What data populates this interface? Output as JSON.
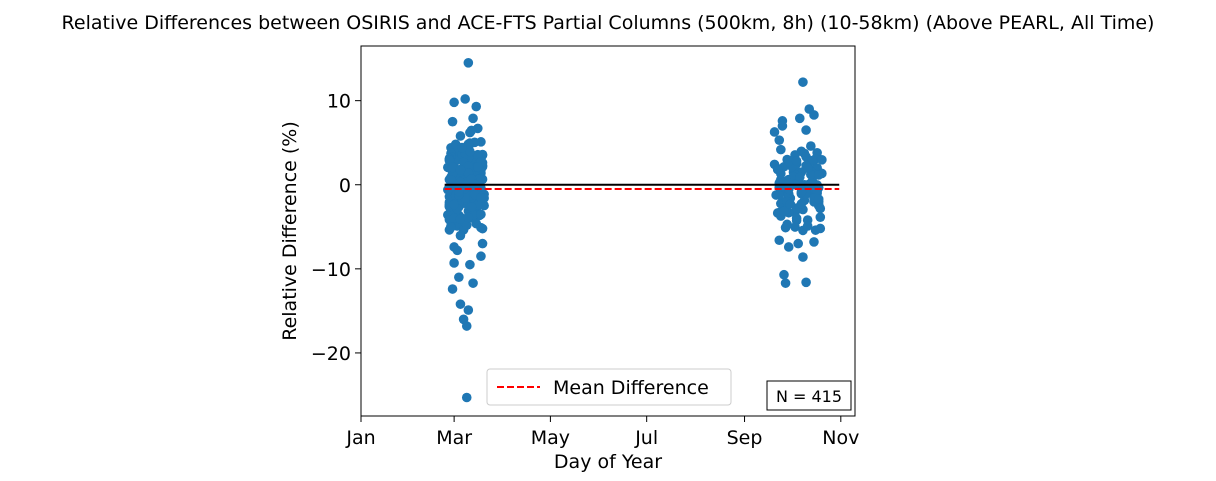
{
  "chart_data": {
    "type": "scatter",
    "title": "Relative Differences between OSIRIS and ACE-FTS Partial Columns (500km, 8h) (10-58km) (Above PEARL, All Time)",
    "xlabel": "Day of Year",
    "ylabel": "Relative Difference (%)",
    "xlim": [
      "Jan",
      "Nov"
    ],
    "ylim": [
      -27.5,
      16.5
    ],
    "x_tick_labels": [
      "Jan",
      "Mar",
      "May",
      "Jul",
      "Sep",
      "Nov"
    ],
    "x_tick_dates": [
      "01-01",
      "03-01",
      "05-01",
      "07-01",
      "09-01",
      "11-01"
    ],
    "y_ticks": [
      10,
      0,
      -10,
      -20
    ],
    "y_tick_labels": [
      "10",
      "0",
      "−10",
      "−20"
    ],
    "zero_line": {
      "y": 0,
      "x_start": "02-23",
      "x_end": "10-31",
      "color": "#000000"
    },
    "mean_line": {
      "name": "Mean Difference",
      "y": -0.5,
      "x_start": "02-23",
      "x_end": "10-31",
      "color": "#ff0000"
    },
    "legend": {
      "label": "Mean Difference",
      "position": "lower center"
    },
    "annotation": "N = 415",
    "grid": false,
    "marker_color": "#1f77b4",
    "series": [
      {
        "n": 415,
        "clusters": [
          {
            "date_range": [
              "02-25",
              "03-20"
            ],
            "points": [
              [
                "03-10",
                14.5
              ],
              [
                "03-08",
                10.2
              ],
              [
                "03-01",
                9.8
              ],
              [
                "03-15",
                9.3
              ],
              [
                "02-28",
                7.5
              ],
              [
                "03-13",
                7.9
              ],
              [
                "03-16",
                6.7
              ],
              [
                "03-11",
                6.2
              ],
              [
                "03-05",
                5.8
              ],
              [
                "03-18",
                5.1
              ],
              [
                "02-27",
                4.4
              ],
              [
                "03-03",
                3.8
              ],
              [
                "03-19",
                2.3
              ],
              [
                "03-07",
                2.0
              ],
              [
                "03-01",
                1.0
              ],
              [
                "03-12",
                0.4
              ],
              [
                "03-04",
                -0.6
              ],
              [
                "03-17",
                -1.2
              ],
              [
                "03-09",
                -2.0
              ],
              [
                "03-02",
                -3.1
              ],
              [
                "03-14",
                -4.0
              ],
              [
                "03-06",
                -5.0
              ],
              [
                "03-19",
                -7.0
              ],
              [
                "03-01",
                -7.4
              ],
              [
                "03-03",
                -7.8
              ],
              [
                "03-18",
                -8.5
              ],
              [
                "03-11",
                -9.5
              ],
              [
                "03-01",
                -9.3
              ],
              [
                "03-04",
                -11.0
              ],
              [
                "03-13",
                -11.7
              ],
              [
                "02-28",
                -12.4
              ],
              [
                "03-05",
                -14.2
              ],
              [
                "03-10",
                -14.9
              ],
              [
                "03-07",
                -16.0
              ],
              [
                "03-09",
                -16.8
              ],
              [
                "03-09",
                -25.3
              ]
            ]
          },
          {
            "date_range": [
              "09-20",
              "10-20"
            ],
            "points": [
              [
                "10-08",
                12.2
              ],
              [
                "10-12",
                9.0
              ],
              [
                "10-15",
                8.3
              ],
              [
                "10-06",
                7.9
              ],
              [
                "09-25",
                7.6
              ],
              [
                "10-10",
                6.5
              ],
              [
                "09-23",
                5.3
              ],
              [
                "10-13",
                4.6
              ],
              [
                "10-17",
                3.8
              ],
              [
                "09-28",
                3.0
              ],
              [
                "10-04",
                2.5
              ],
              [
                "10-19",
                1.4
              ],
              [
                "09-24",
                0.6
              ],
              [
                "10-09",
                0.0
              ],
              [
                "10-14",
                -0.9
              ],
              [
                "09-30",
                -1.6
              ],
              [
                "10-18",
                -2.5
              ],
              [
                "10-03",
                -3.3
              ],
              [
                "10-11",
                -4.2
              ],
              [
                "09-27",
                -5.1
              ],
              [
                "10-16",
                -5.4
              ],
              [
                "09-23",
                -6.6
              ],
              [
                "10-05",
                -7.0
              ],
              [
                "09-29",
                -7.4
              ],
              [
                "10-15",
                -6.8
              ],
              [
                "10-08",
                -8.6
              ],
              [
                "09-26",
                -10.7
              ],
              [
                "09-27",
                -11.7
              ],
              [
                "10-10",
                -11.6
              ],
              [
                "10-19",
                -5.2
              ]
            ]
          }
        ]
      }
    ]
  }
}
